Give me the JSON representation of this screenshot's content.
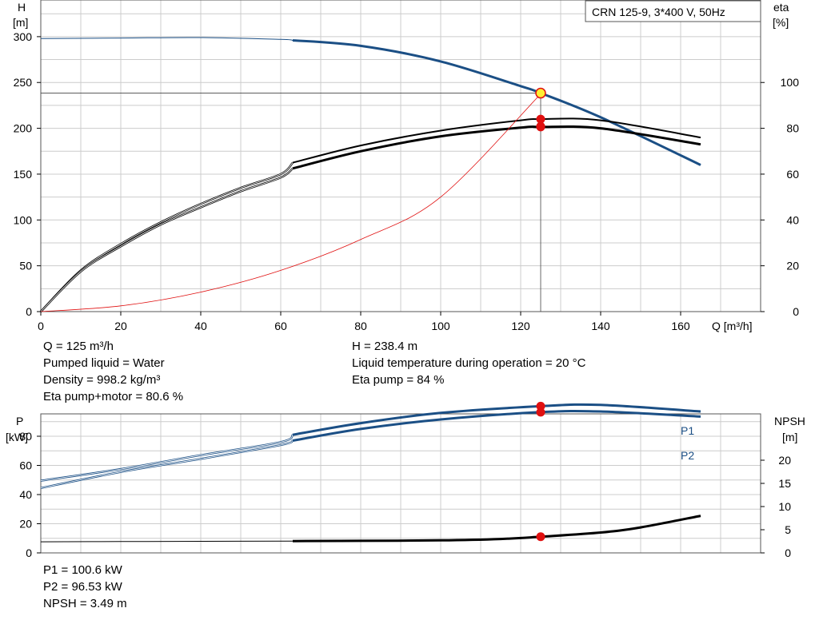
{
  "top_chart": {
    "legend_box": "CRN 125-9, 3*400 V, 50Hz",
    "left_axis": {
      "line1": "H",
      "line2": "[m]",
      "ticks": [
        "0",
        "50",
        "100",
        "150",
        "200",
        "250",
        "300"
      ]
    },
    "right_axis": {
      "line1": "eta",
      "line2": "[%]",
      "ticks": [
        "0",
        "20",
        "40",
        "60",
        "80",
        "100"
      ]
    },
    "x_axis": {
      "label": "Q [m³/h]",
      "ticks": [
        "0",
        "20",
        "40",
        "60",
        "80",
        "100",
        "120",
        "140",
        "160"
      ]
    }
  },
  "bottom_chart": {
    "left_axis": {
      "line1": "P",
      "line2": "[kW]",
      "ticks": [
        "0",
        "20",
        "40",
        "60",
        "80"
      ]
    },
    "right_axis": {
      "line1": "NPSH",
      "line2": "[m]",
      "ticks": [
        "0",
        "5",
        "10",
        "15",
        "20"
      ]
    },
    "p1_label": "P1",
    "p2_label": "P2"
  },
  "info_top": {
    "q": "Q = 125 m³/h",
    "liquid": "Pumped liquid = Water",
    "density": "Density = 998.2 kg/m³",
    "eta_total": "Eta pump+motor = 80.6 %",
    "h": "H = 238.4 m",
    "temp": "Liquid temperature during operation = 20 °C",
    "eta_pump": "Eta pump = 84 %"
  },
  "info_bottom": {
    "p1": "P1 = 100.6 kW",
    "p2": "P2 = 96.53 kW",
    "npsh": "NPSH = 3.49 m"
  },
  "colors": {
    "blue": "#1b4f85",
    "black": "#000000",
    "red": "#e01010",
    "marker_fill": "#ffee33",
    "grid": "#cccccc"
  },
  "chart_data": [
    {
      "type": "line",
      "title": "CRN 125-9, 3*400 V, 50Hz",
      "xlabel": "Q [m³/h]",
      "ylabel": "H [m]",
      "y2label": "eta [%]",
      "xlim": [
        0,
        180
      ],
      "ylim": [
        0,
        340
      ],
      "y2lim": [
        0,
        136
      ],
      "duty_point": {
        "q": 125,
        "h": 238.4,
        "eta_pump": 84,
        "eta_total": 80.6
      },
      "series": [
        {
          "axis": "left",
          "color": "#1b4f85",
          "q": [
            0,
            20,
            40,
            60,
            63,
            80,
            100,
            120,
            125,
            140,
            165
          ],
          "values": [
            298,
            298.5,
            299,
            297,
            296,
            290,
            273,
            246,
            238.4,
            212,
            160
          ]
        },
        {
          "axis": "right",
          "color": "#000000",
          "q": [
            0,
            10,
            20,
            30,
            40,
            50,
            60,
            63,
            80,
            100,
            120,
            125,
            140,
            165
          ],
          "values": [
            0,
            18,
            29.5,
            39,
            47,
            54,
            60,
            65,
            72.5,
            79,
            83.5,
            84,
            83.5,
            76
          ]
        },
        {
          "axis": "right",
          "color": "#000000",
          "q": [
            0,
            10,
            20,
            30,
            40,
            50,
            60,
            63,
            80,
            100,
            120,
            125,
            140,
            165
          ],
          "values": [
            0,
            17.5,
            28.5,
            38,
            45.5,
            52.5,
            58.5,
            62.5,
            70,
            76.5,
            80.3,
            80.6,
            80,
            73
          ]
        },
        {
          "axis": "right",
          "color": "#e01010",
          "q": [
            0,
            20,
            40,
            60,
            80,
            100,
            125
          ],
          "values": [
            0,
            2.5,
            8.5,
            18,
            31.5,
            50,
            95
          ]
        }
      ]
    },
    {
      "type": "line",
      "ylabel": "P [kW]",
      "y2label": "NPSH [m]",
      "xlim": [
        0,
        180
      ],
      "ylim": [
        0,
        100
      ],
      "y2lim": [
        0,
        25
      ],
      "duty_point": {
        "q": 125,
        "p1": 100.6,
        "p2": 96.53,
        "npsh": 3.49
      },
      "series": [
        {
          "name": "P1",
          "axis": "left",
          "color": "#1b4f85",
          "q": [
            0,
            20,
            40,
            60,
            63,
            80,
            100,
            125,
            140,
            165
          ],
          "values": [
            49.5,
            57.5,
            67,
            76,
            81,
            89,
            96,
            100.6,
            101.5,
            97
          ]
        },
        {
          "name": "P2",
          "axis": "left",
          "color": "#1b4f85",
          "q": [
            0,
            20,
            40,
            60,
            63,
            80,
            100,
            125,
            140,
            165
          ],
          "values": [
            44.5,
            55.5,
            64.5,
            74,
            77,
            85,
            91.5,
            96.53,
            97,
            93.5
          ]
        },
        {
          "axis": "right",
          "color": "#000000",
          "q": [
            0,
            20,
            40,
            63,
            80,
            100,
            115,
            125,
            140,
            150,
            165
          ],
          "values": [
            2.4,
            2.45,
            2.5,
            2.55,
            2.6,
            2.7,
            3.0,
            3.49,
            4.4,
            5.5,
            8.0
          ]
        }
      ]
    }
  ]
}
